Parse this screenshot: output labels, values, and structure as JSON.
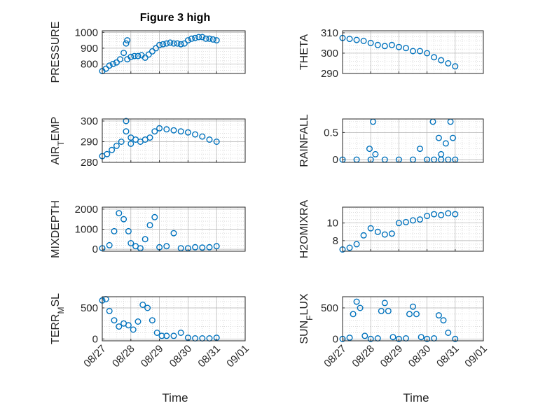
{
  "figure": {
    "title": "Figure 3 high",
    "marker_color": "#0072BD",
    "axes_color": "#262626",
    "grid_color": "#c8c8c8"
  },
  "xaxis": {
    "label": "Time",
    "range": [
      "08/27",
      "09/01"
    ],
    "ticks": [
      "08/27",
      "08/28",
      "08/29",
      "08/30",
      "08/31",
      "09/01"
    ]
  },
  "chart_data": [
    {
      "type": "scatter",
      "title": "Figure 3 high",
      "ylabel": "PRESSURE",
      "ylim": [
        740,
        1010
      ],
      "yticks": [
        "800",
        "900",
        "1000"
      ],
      "grid": true,
      "xlabel": "",
      "x": [
        "08/27 00:00",
        "08/27 03:00",
        "08/27 06:00",
        "08/27 09:00",
        "08/27 12:00",
        "08/27 15:00",
        "08/27 18:00",
        "08/27 21:00",
        "08/28 00:00",
        "08/28 03:00",
        "08/28 06:00",
        "08/28 09:00",
        "08/28 12:00",
        "08/28 15:00",
        "08/28 18:00",
        "08/28 21:00",
        "08/29 00:00",
        "08/29 03:00",
        "08/29 06:00",
        "08/29 09:00",
        "08/29 12:00",
        "08/29 15:00",
        "08/29 18:00",
        "08/29 21:00",
        "08/30 00:00",
        "08/30 03:00",
        "08/30 06:00",
        "08/30 09:00",
        "08/30 12:00",
        "08/30 15:00",
        "08/30 18:00",
        "08/30 21:00",
        "08/31 00:00",
        "08/27 20:00",
        "08/27 21:00"
      ],
      "y": [
        755,
        770,
        790,
        800,
        810,
        830,
        870,
        830,
        845,
        850,
        850,
        855,
        840,
        860,
        880,
        900,
        920,
        925,
        930,
        935,
        930,
        930,
        925,
        930,
        950,
        960,
        965,
        970,
        970,
        960,
        960,
        955,
        950,
        930,
        950
      ]
    },
    {
      "type": "scatter",
      "ylabel": "THETA",
      "ylim": [
        290,
        311
      ],
      "yticks": [
        "290",
        "300",
        "310"
      ],
      "grid": true,
      "xlabel": "",
      "x": [
        "08/27 00:00",
        "08/27 06:00",
        "08/27 12:00",
        "08/27 18:00",
        "08/28 00:00",
        "08/28 06:00",
        "08/28 12:00",
        "08/28 18:00",
        "08/29 00:00",
        "08/29 06:00",
        "08/29 12:00",
        "08/29 18:00",
        "08/30 00:00",
        "08/30 06:00",
        "08/30 12:00",
        "08/30 18:00",
        "08/31 00:00"
      ],
      "y": [
        307.5,
        307,
        306.5,
        306,
        305,
        304,
        303.5,
        304,
        303,
        302.5,
        301,
        301,
        300,
        298,
        296.5,
        295,
        293.5
      ]
    },
    {
      "type": "scatter",
      "ylabel": "AIR_T EMP",
      "ylim": [
        280,
        301
      ],
      "yticks": [
        "280",
        "290",
        "300"
      ],
      "grid": true,
      "xlabel": "",
      "x": [
        "08/27 00:00",
        "08/27 04:00",
        "08/27 08:00",
        "08/27 12:00",
        "08/27 16:00",
        "08/27 20:00",
        "08/28 00:00",
        "08/28 04:00",
        "08/28 08:00",
        "08/28 12:00",
        "08/28 16:00",
        "08/28 20:00",
        "08/29 00:00",
        "08/29 06:00",
        "08/29 12:00",
        "08/29 18:00",
        "08/30 00:00",
        "08/30 06:00",
        "08/30 12:00",
        "08/30 18:00",
        "08/31 00:00",
        "08/27 20:00",
        "08/28 00:00"
      ],
      "y": [
        283,
        284,
        286,
        288,
        290,
        295,
        292,
        291,
        290,
        291,
        292,
        295,
        296.5,
        296,
        295.5,
        295,
        294.5,
        293.5,
        292.5,
        291,
        290,
        300,
        289
      ]
    },
    {
      "type": "scatter",
      "ylabel": "RAINFALL",
      "ylim": [
        -0.05,
        0.75
      ],
      "yticks": [
        "0",
        "0.5"
      ],
      "grid": true,
      "xlabel": "",
      "x": [
        "08/27 00:00",
        "08/27 12:00",
        "08/28 00:00",
        "08/28 12:00",
        "08/29 00:00",
        "08/29 12:00",
        "08/30 00:00",
        "08/30 06:00",
        "08/30 12:00",
        "08/30 18:00",
        "08/31 00:00",
        "08/27 23:00",
        "08/28 02:00",
        "08/28 04:00",
        "08/29 18:00",
        "08/30 05:00",
        "08/30 10:00",
        "08/30 12:00",
        "08/30 16:00",
        "08/30 20:00",
        "08/30 22:00"
      ],
      "y": [
        0,
        0,
        0,
        0,
        0,
        0,
        0,
        0,
        0,
        0,
        0,
        0.2,
        0.7,
        0.1,
        0.2,
        0.7,
        0.4,
        0.1,
        0.3,
        0.7,
        0.4
      ]
    },
    {
      "type": "scatter",
      "ylabel": "MIXDEPTH",
      "ylim": [
        -100,
        2100
      ],
      "yticks": [
        "0",
        "1000",
        "2000"
      ],
      "grid": true,
      "xlabel": "",
      "x": [
        "08/27 00:00",
        "08/27 06:00",
        "08/27 10:00",
        "08/27 14:00",
        "08/27 18:00",
        "08/27 22:00",
        "08/28 00:00",
        "08/28 04:00",
        "08/28 08:00",
        "08/28 12:00",
        "08/28 16:00",
        "08/28 20:00",
        "08/29 00:00",
        "08/29 06:00",
        "08/29 12:00",
        "08/29 18:00",
        "08/30 00:00",
        "08/30 06:00",
        "08/30 12:00",
        "08/30 18:00",
        "08/31 00:00"
      ],
      "y": [
        50,
        200,
        900,
        1800,
        1500,
        900,
        300,
        150,
        50,
        500,
        1200,
        1600,
        100,
        150,
        800,
        50,
        50,
        100,
        80,
        100,
        150
      ]
    },
    {
      "type": "scatter",
      "ylabel": "H2OMIXRA",
      "ylim": [
        6.8,
        11.8
      ],
      "yticks": [
        "8",
        "10"
      ],
      "grid": true,
      "xlabel": "",
      "x": [
        "08/27 00:00",
        "08/27 06:00",
        "08/27 12:00",
        "08/27 18:00",
        "08/28 00:00",
        "08/28 06:00",
        "08/28 12:00",
        "08/28 18:00",
        "08/29 00:00",
        "08/29 06:00",
        "08/29 12:00",
        "08/29 18:00",
        "08/30 00:00",
        "08/30 06:00",
        "08/30 12:00",
        "08/30 18:00",
        "08/31 00:00"
      ],
      "y": [
        7.0,
        7.2,
        7.6,
        8.6,
        9.4,
        9.0,
        8.7,
        8.8,
        10.0,
        10.1,
        10.3,
        10.4,
        10.8,
        11.0,
        10.9,
        11.1,
        11.0
      ]
    },
    {
      "type": "scatter",
      "ylabel": "TERR_M SL",
      "ylim": [
        -30,
        680
      ],
      "yticks": [
        "0",
        "500"
      ],
      "grid": true,
      "xlabel": "Time",
      "x": [
        "08/27 00:00",
        "08/27 03:00",
        "08/27 06:00",
        "08/27 10:00",
        "08/27 14:00",
        "08/27 18:00",
        "08/27 22:00",
        "08/28 02:00",
        "08/28 06:00",
        "08/28 10:00",
        "08/28 14:00",
        "08/28 18:00",
        "08/28 22:00",
        "08/29 02:00",
        "08/29 06:00",
        "08/29 12:00",
        "08/29 18:00",
        "08/30 00:00",
        "08/30 06:00",
        "08/30 12:00",
        "08/30 18:00",
        "08/31 00:00"
      ],
      "y": [
        620,
        640,
        450,
        300,
        200,
        250,
        220,
        150,
        280,
        550,
        500,
        300,
        100,
        50,
        50,
        50,
        100,
        20,
        10,
        10,
        10,
        20
      ]
    },
    {
      "type": "scatter",
      "ylabel": "SUN_F LUX",
      "ylim": [
        -30,
        680
      ],
      "yticks": [
        "0",
        "500"
      ],
      "grid": true,
      "xlabel": "Time",
      "x": [
        "08/27 00:00",
        "08/27 06:00",
        "08/27 09:00",
        "08/27 12:00",
        "08/27 15:00",
        "08/27 19:00",
        "08/28 00:00",
        "08/28 06:00",
        "08/28 09:00",
        "08/28 12:00",
        "08/28 15:00",
        "08/28 19:00",
        "08/29 00:00",
        "08/29 06:00",
        "08/29 09:00",
        "08/29 12:00",
        "08/29 15:00",
        "08/29 19:00",
        "08/30 00:00",
        "08/30 06:00",
        "08/30 10:00",
        "08/30 14:00",
        "08/30 18:00",
        "08/31 00:00"
      ],
      "y": [
        0,
        20,
        400,
        600,
        500,
        50,
        0,
        10,
        450,
        580,
        450,
        30,
        0,
        10,
        400,
        520,
        400,
        30,
        0,
        10,
        380,
        300,
        100,
        0
      ]
    }
  ]
}
